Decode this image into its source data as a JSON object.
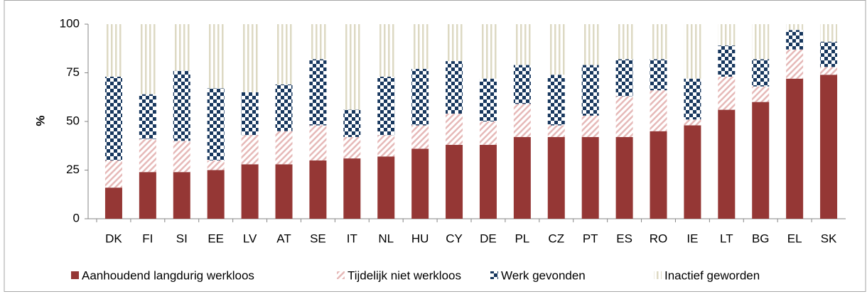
{
  "chart_data": {
    "type": "stacked-bar",
    "ylabel": "%",
    "categories": [
      "DK",
      "FI",
      "SI",
      "EE",
      "LV",
      "AT",
      "SE",
      "IT",
      "NL",
      "HU",
      "CY",
      "DE",
      "PL",
      "CZ",
      "PT",
      "ES",
      "RO",
      "IE",
      "LT",
      "BG",
      "EL",
      "SK"
    ],
    "series": [
      {
        "name": "Aanhoudend langdurig werkloos",
        "color": "#953735",
        "pattern": "solid",
        "values": [
          16,
          24,
          24,
          25,
          28,
          28,
          30,
          31,
          32,
          36,
          38,
          38,
          42,
          42,
          42,
          42,
          45,
          48,
          56,
          60,
          72,
          74
        ]
      },
      {
        "name": "Tijdelijk niet werkloos",
        "color": "#e6b9b8",
        "pattern": "diagonal",
        "values": [
          14,
          17,
          16,
          5,
          15,
          17,
          18,
          11,
          11,
          12,
          16,
          12,
          17,
          6,
          11,
          21,
          21,
          3,
          17,
          8,
          15,
          4
        ]
      },
      {
        "name": "Werk gevonden",
        "color": "#17375e",
        "pattern": "checker",
        "values": [
          43,
          23,
          36,
          37,
          22,
          24,
          34,
          14,
          30,
          29,
          27,
          22,
          20,
          26,
          26,
          19,
          16,
          21,
          16,
          14,
          10,
          13
        ]
      },
      {
        "name": "Inactief geworden",
        "color": "#ddd9c3",
        "pattern": "vertical",
        "values": [
          27,
          36,
          24,
          33,
          35,
          31,
          18,
          44,
          27,
          23,
          19,
          28,
          21,
          26,
          21,
          18,
          18,
          28,
          11,
          18,
          3,
          9
        ]
      }
    ],
    "ylim": [
      0,
      100
    ],
    "yticks": [
      0,
      25,
      50,
      75,
      100
    ],
    "grid": false
  }
}
